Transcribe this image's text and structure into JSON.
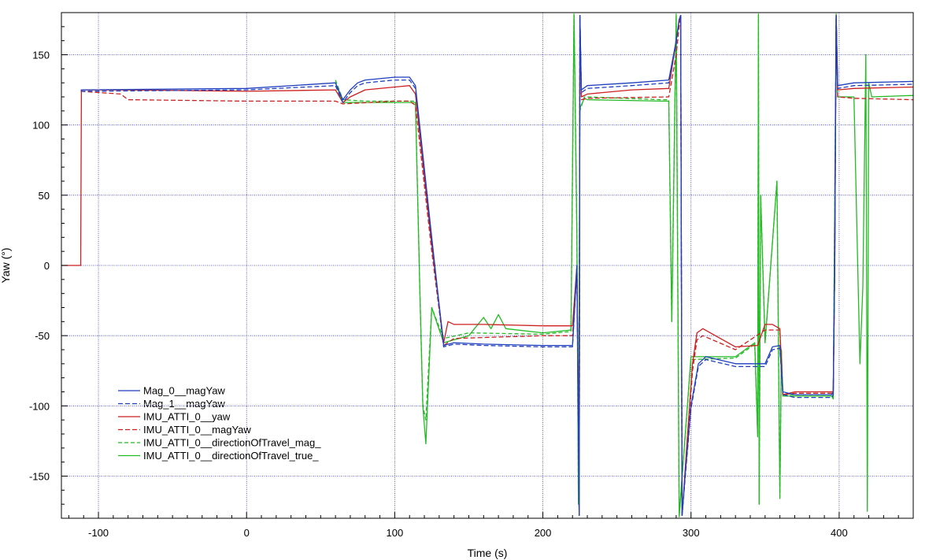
{
  "chart_data": {
    "type": "line",
    "title": "",
    "xlabel": "Time (s)",
    "ylabel": "Yaw (°)",
    "xlim": [
      -125,
      450
    ],
    "ylim": [
      -180,
      180
    ],
    "x_ticks": [
      -100,
      0,
      100,
      200,
      300,
      400
    ],
    "y_ticks": [
      150,
      100,
      50,
      0,
      -50,
      -100,
      -150
    ],
    "x_tick_labels": [
      "-100",
      "0",
      "100",
      "200",
      "300",
      "400"
    ],
    "y_tick_labels": [
      "150",
      "100",
      "50",
      "0",
      "-50",
      "-100",
      "-150"
    ],
    "grid": true,
    "legend_position": "lower-left",
    "series": [
      {
        "name": "Mag_0__magYaw",
        "color": "#1f3fbf",
        "dash": "solid",
        "x": [
          -112,
          0,
          60,
          65,
          70,
          75,
          80,
          100,
          110,
          114,
          125,
          133,
          140,
          160,
          200,
          220,
          223,
          224.5,
          225,
          226,
          230,
          260,
          285,
          290,
          292,
          293,
          294,
          296,
          300,
          305,
          310,
          330,
          350,
          355,
          360,
          362,
          370,
          395,
          396,
          397,
          398,
          399,
          410,
          450
        ],
        "y": [
          125,
          126,
          130,
          118,
          125,
          130,
          132,
          134,
          134,
          128,
          20,
          -57,
          -55,
          -56,
          -57,
          -57,
          0,
          -178,
          178,
          125,
          128,
          130,
          132,
          160,
          175,
          178,
          -178,
          -150,
          -100,
          -70,
          -65,
          -70,
          -70,
          -58,
          -57,
          -90,
          -92,
          -92,
          -90,
          0,
          178,
          128,
          130,
          131
        ]
      },
      {
        "name": "Mag_1__magYaw",
        "color": "#1f3fbf",
        "dash": "6,3",
        "x": [
          -112,
          0,
          60,
          65,
          70,
          75,
          80,
          100,
          110,
          114,
          125,
          133,
          140,
          160,
          200,
          220,
          223,
          224.5,
          225,
          226,
          230,
          260,
          285,
          290,
          292,
          293,
          294,
          296,
          300,
          305,
          310,
          330,
          350,
          355,
          360,
          362,
          370,
          395,
          396,
          397,
          398,
          399,
          410,
          450
        ],
        "y": [
          124,
          125,
          128,
          116,
          123,
          128,
          130,
          132,
          132,
          126,
          18,
          -58,
          -56,
          -57,
          -58,
          -58,
          -2,
          -178,
          178,
          123,
          126,
          128,
          130,
          158,
          175,
          178,
          -178,
          -152,
          -102,
          -72,
          -67,
          -72,
          -72,
          -60,
          -59,
          -92,
          -94,
          -94,
          -92,
          -2,
          178,
          126,
          128,
          129
        ]
      },
      {
        "name": "IMU_ATTI_0__yaw",
        "color": "#cc1f1f",
        "dash": "solid",
        "x": [
          -125,
          -112,
          -111.5,
          -80,
          0,
          60,
          65,
          70,
          80,
          110,
          114,
          125,
          133,
          136,
          140,
          160,
          200,
          220,
          223,
          224.5,
          225,
          226,
          230,
          260,
          285,
          290,
          292,
          293,
          294,
          297,
          301,
          304,
          308,
          330,
          345,
          350,
          355,
          360,
          362,
          370,
          395,
          396,
          397,
          398,
          399,
          410,
          450
        ],
        "y": [
          0,
          0,
          125,
          125,
          124,
          125,
          116,
          120,
          125,
          128,
          122,
          15,
          -55,
          -40,
          -42,
          -42,
          -43,
          -43,
          0,
          -178,
          178,
          120,
          122,
          125,
          126,
          160,
          175,
          178,
          -178,
          -130,
          -70,
          -48,
          -45,
          -58,
          -57,
          -42,
          -42,
          -45,
          -92,
          -90,
          -90,
          -90,
          0,
          178,
          125,
          126,
          127
        ]
      },
      {
        "name": "IMU_ATTI_0__magYaw",
        "color": "#cc1f1f",
        "dash": "6,3",
        "x": [
          -112,
          -85,
          -80,
          0,
          60,
          65,
          100,
          110,
          114,
          125,
          133,
          140,
          200,
          220,
          223,
          224.5,
          225,
          226,
          230,
          285,
          290,
          292,
          293,
          294,
          297,
          301,
          304,
          308,
          330,
          350,
          360,
          362,
          370,
          395,
          396,
          397,
          398,
          399,
          410,
          450
        ],
        "y": [
          124,
          122,
          118,
          117,
          117,
          115,
          117,
          117,
          114,
          10,
          -57,
          -52,
          -50,
          -50,
          -5,
          -178,
          178,
          118,
          119,
          120,
          150,
          170,
          178,
          -178,
          -135,
          -75,
          -53,
          -50,
          -60,
          -46,
          -46,
          -92,
          -91,
          -91,
          -91,
          0,
          178,
          120,
          119,
          118
        ]
      },
      {
        "name": "IMU_ATTI_0__directionOfTravel_mag_",
        "color": "#22bb22",
        "dash": "5,3",
        "x": [
          60,
          65,
          80,
          110,
          114,
          117,
          119,
          121,
          125,
          133,
          150,
          200,
          219,
          221,
          222,
          223,
          224,
          225,
          228,
          230,
          280,
          285,
          287,
          290,
          292,
          300,
          330,
          343,
          345,
          345.5,
          346,
          347,
          350,
          358,
          360,
          361,
          362,
          395,
          396,
          398,
          399
        ],
        "y": [
          132,
          118,
          117,
          117,
          117,
          -20,
          -100,
          -110,
          -30,
          -52,
          -48,
          -49,
          -47,
          178,
          100,
          20,
          -170,
          110,
          120,
          120,
          118,
          118,
          -40,
          178,
          -178,
          -67,
          -66,
          -56,
          -120,
          178,
          -170,
          50,
          -55,
          60,
          -165,
          -60,
          -92,
          -92,
          -95,
          178,
          120
        ]
      },
      {
        "name": "IMU_ATTI_0__directionOfTravel_true_",
        "color": "#22bb22",
        "dash": "solid",
        "x": [
          60,
          65,
          80,
          110,
          114,
          117,
          119,
          121,
          125,
          133,
          150,
          160,
          165,
          170,
          175,
          200,
          219,
          221,
          222,
          223,
          224,
          225,
          228,
          230,
          280,
          285,
          287,
          290,
          292,
          300,
          330,
          343,
          345,
          345.5,
          346,
          347,
          350,
          358,
          360,
          361,
          362,
          395,
          396,
          398,
          399,
          410,
          414,
          416,
          418,
          419,
          420,
          422,
          450
        ],
        "y": [
          130,
          116,
          116,
          116,
          116,
          -20,
          -100,
          -127,
          -30,
          -55,
          -50,
          -37,
          -45,
          -35,
          -45,
          -48,
          -46,
          179,
          100,
          20,
          -170,
          112,
          119,
          118,
          117,
          117,
          -40,
          179,
          -179,
          -65,
          -65,
          -55,
          -122,
          179,
          -170,
          50,
          -55,
          60,
          -166,
          -60,
          -93,
          -93,
          -95,
          179,
          120,
          120,
          -70,
          -15,
          150,
          -175,
          130,
          120,
          121
        ]
      }
    ]
  }
}
